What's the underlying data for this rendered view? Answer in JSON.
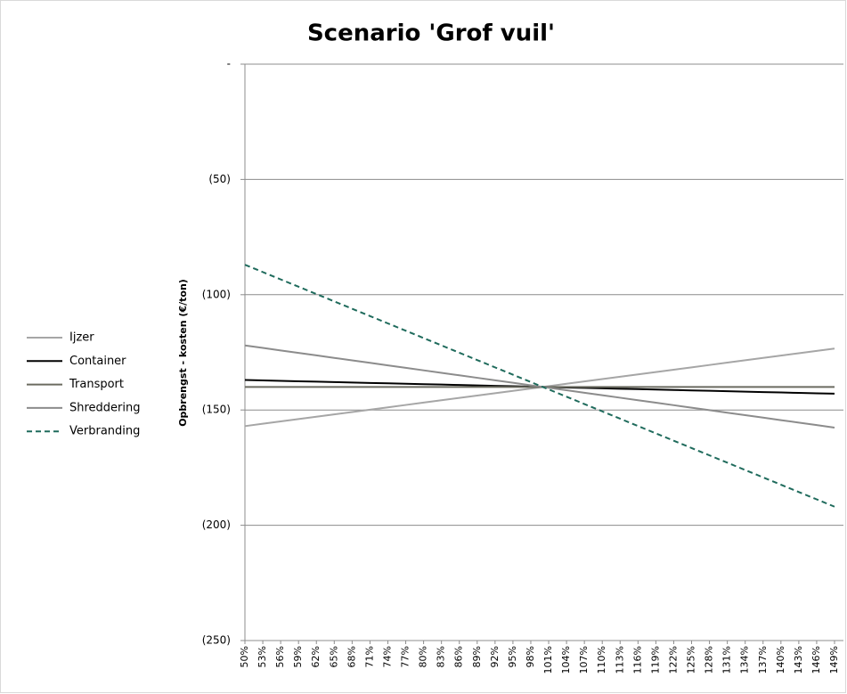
{
  "chart_data": {
    "type": "line",
    "title": "Scenario 'Grof vuil'",
    "y_label": "Opbrengst - kosten (€/ton)",
    "categories": [
      "50%",
      "53%",
      "56%",
      "59%",
      "62%",
      "65%",
      "68%",
      "71%",
      "74%",
      "77%",
      "80%",
      "83%",
      "86%",
      "89%",
      "92%",
      "95%",
      "98%",
      "101%",
      "104%",
      "107%",
      "110%",
      "113%",
      "116%",
      "119%",
      "122%",
      "125%",
      "128%",
      "131%",
      "134%",
      "137%",
      "140%",
      "143%",
      "146%",
      "149%"
    ],
    "ylim": [
      -250,
      0
    ],
    "yticks": [
      {
        "value": 0,
        "label": "-"
      },
      {
        "value": -50,
        "label": "(50)"
      },
      {
        "value": -100,
        "label": "(100)"
      },
      {
        "value": -150,
        "label": "(150)"
      },
      {
        "value": -200,
        "label": "(200)"
      },
      {
        "value": -250,
        "label": "(250)"
      }
    ],
    "grid": true,
    "legend": "left",
    "series": [
      {
        "name": "Ijzer",
        "color": "#a6a6a6",
        "dash": false,
        "values": [
          -157,
          -155.98,
          -154.96,
          -153.94,
          -152.92,
          -151.9,
          -150.88,
          -149.86,
          -148.84,
          -147.82,
          -146.8,
          -145.78,
          -144.76,
          -143.74,
          -142.72,
          -141.7,
          -140.68,
          -139.66,
          -138.64,
          -137.62,
          -136.6,
          -135.58,
          -134.56,
          -133.54,
          -132.52,
          -131.5,
          -130.48,
          -129.46,
          -128.44,
          -127.42,
          -126.4,
          -125.38,
          -124.36,
          -123.34
        ]
      },
      {
        "name": "Container",
        "color": "#000000",
        "dash": false,
        "values": [
          -137,
          -137.18,
          -137.36,
          -137.54,
          -137.72,
          -137.9,
          -138.08,
          -138.26,
          -138.44,
          -138.62,
          -138.8,
          -138.98,
          -139.16,
          -139.34,
          -139.52,
          -139.7,
          -139.88,
          -140.06,
          -140.24,
          -140.42,
          -140.6,
          -140.78,
          -140.96,
          -141.14,
          -141.32,
          -141.5,
          -141.68,
          -141.86,
          -142.04,
          -142.22,
          -142.4,
          -142.58,
          -142.76,
          -142.94
        ]
      },
      {
        "name": "Transport",
        "color": "#6b6b60",
        "dash": false,
        "values": [
          -140,
          -140,
          -140,
          -140,
          -140,
          -140,
          -140,
          -140,
          -140,
          -140,
          -140,
          -140,
          -140,
          -140,
          -140,
          -140,
          -140,
          -140,
          -140,
          -140,
          -140,
          -140,
          -140,
          -140,
          -140,
          -140,
          -140,
          -140,
          -140,
          -140,
          -140,
          -140,
          -140,
          -140
        ]
      },
      {
        "name": "Shreddering",
        "color": "#8c8c8c",
        "dash": false,
        "values": [
          -122,
          -123.08,
          -124.16,
          -125.24,
          -126.32,
          -127.4,
          -128.48,
          -129.56,
          -130.64,
          -131.72,
          -132.8,
          -133.88,
          -134.96,
          -136.04,
          -137.12,
          -138.2,
          -139.28,
          -140.36,
          -141.44,
          -142.52,
          -143.6,
          -144.68,
          -145.76,
          -146.84,
          -147.92,
          -149,
          -150.08,
          -151.16,
          -152.24,
          -153.32,
          -154.4,
          -155.48,
          -156.56,
          -157.64
        ]
      },
      {
        "name": "Verbranding",
        "color": "#1f6b5c",
        "dash": true,
        "values": [
          -87,
          -90.18,
          -93.36,
          -96.54,
          -99.72,
          -102.9,
          -106.08,
          -109.26,
          -112.44,
          -115.62,
          -118.8,
          -121.98,
          -125.16,
          -128.34,
          -131.52,
          -134.7,
          -137.88,
          -141.06,
          -144.24,
          -147.42,
          -150.6,
          -153.78,
          -156.96,
          -160.14,
          -163.32,
          -166.5,
          -169.68,
          -172.86,
          -176.04,
          -179.22,
          -182.4,
          -185.58,
          -188.76,
          -191.94
        ]
      }
    ]
  }
}
